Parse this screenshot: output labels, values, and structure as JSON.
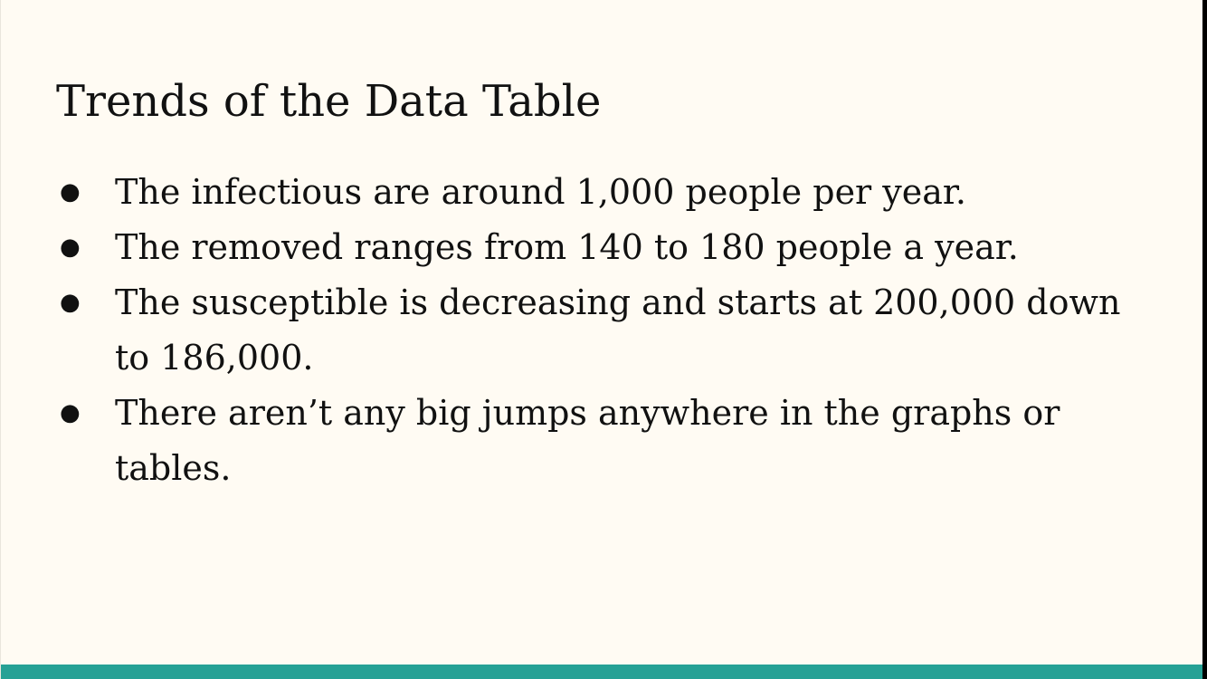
{
  "slide": {
    "title": "Trends of the Data Table",
    "bullet_glyph": "●",
    "bullets": [
      "The infectious are around 1,000 people per year.",
      "The removed ranges from 140 to 180 people a year.",
      "The susceptible is decreasing and starts at 200,000 down to 186,000.",
      "There aren’t any big jumps anywhere in the graphs or tables."
    ]
  },
  "colors": {
    "background": "#fffbf3",
    "text": "#111111",
    "accent_bar": "#26a195"
  }
}
